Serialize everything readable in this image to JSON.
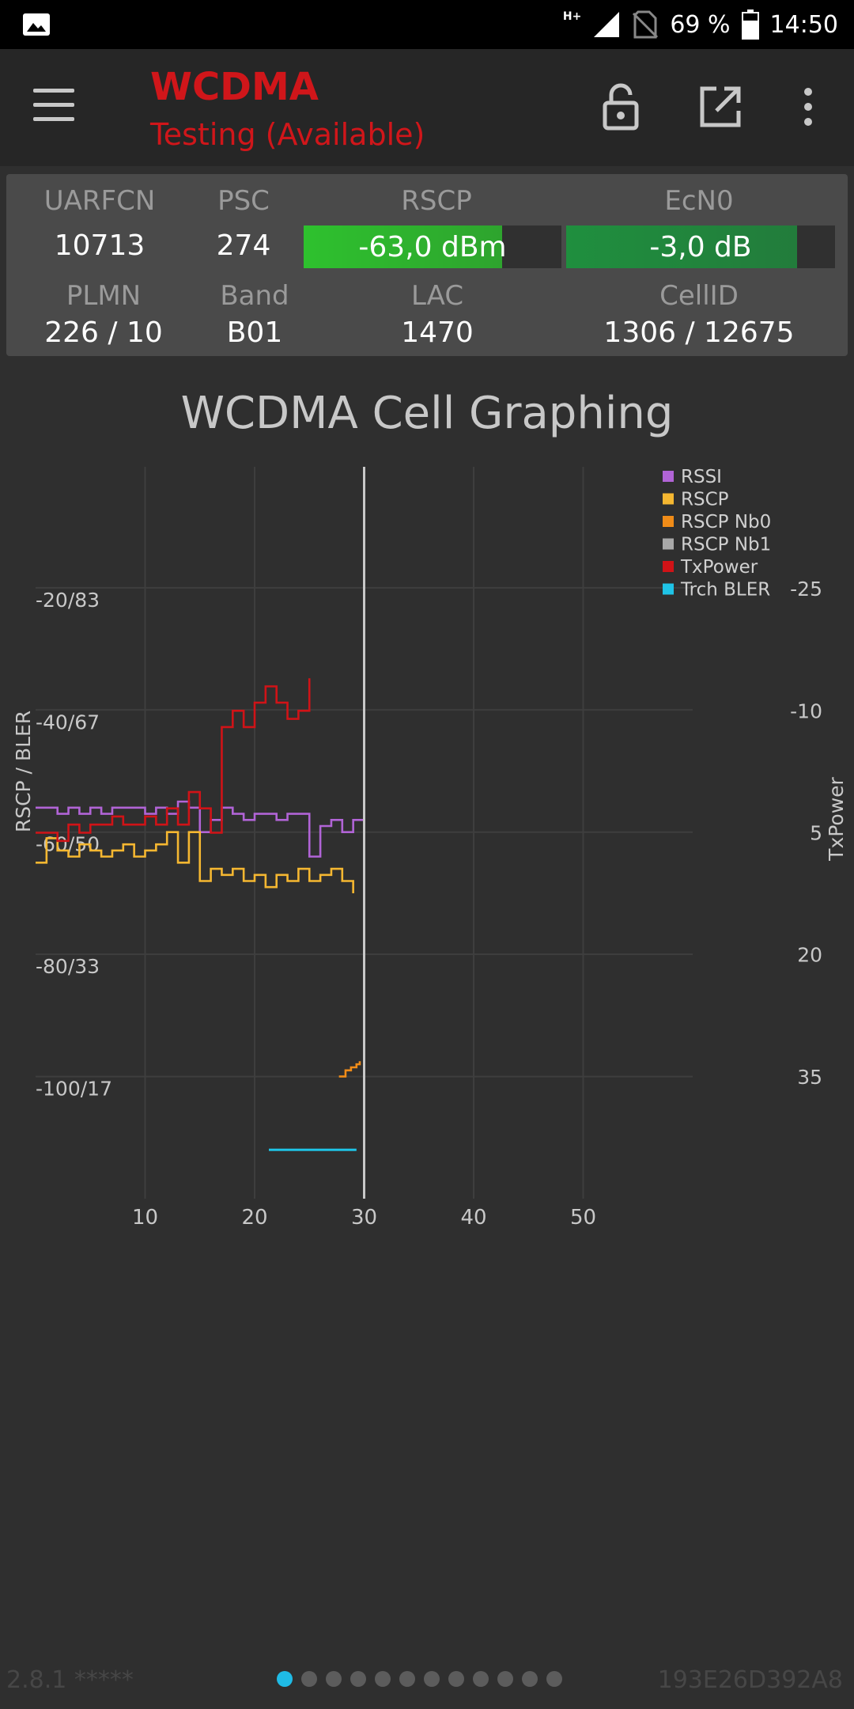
{
  "status_bar": {
    "network_type": "H+",
    "battery": "69 %",
    "time": "14:50"
  },
  "toolbar": {
    "title": "WCDMA",
    "subtitle": "Testing (Available)",
    "menu_icon": "hamburger-menu-icon",
    "lock_icon": "lock-open-icon",
    "external_icon": "open-external-icon",
    "more_icon": "more-vertical-icon"
  },
  "info": {
    "uarfcn": {
      "label": "UARFCN",
      "value": "10713"
    },
    "psc": {
      "label": "PSC",
      "value": "274"
    },
    "rscp": {
      "label": "RSCP",
      "value": "-63,0 dBm",
      "fill": 0.77,
      "color": "#2ec12e"
    },
    "ecn0": {
      "label": "EcN0",
      "value": "-3,0 dB",
      "fill": 0.86,
      "color": "#1f8f3e"
    },
    "plmn": {
      "label": "PLMN",
      "value": "226 / 10"
    },
    "band": {
      "label": "Band",
      "value": "B01"
    },
    "lac": {
      "label": "LAC",
      "value": "1470"
    },
    "cellid": {
      "label": "CellID",
      "value": "1306 / 12675"
    }
  },
  "chart_title": "WCDMA Cell Graphing",
  "chart_data": {
    "type": "line",
    "title": "WCDMA Cell Graphing",
    "xlabel": "",
    "ylabel": "RSCP / BLER",
    "y2label": "TxPower",
    "x_ticks": [
      "10",
      "20",
      "30",
      "40",
      "50"
    ],
    "xlim": [
      0,
      60
    ],
    "y_left_ticks": [
      "-20/83",
      "-40/67",
      "-60/50",
      "-80/33",
      "-100/17"
    ],
    "y_left_values": [
      -20,
      -40,
      -60,
      -80,
      -100
    ],
    "ylim": [
      -120,
      -0.2
    ],
    "y_right_ticks": [
      "-25",
      "-10",
      "5",
      "20",
      "35"
    ],
    "y_right_values": [
      -25,
      -10,
      5,
      20,
      35
    ],
    "y2lim": [
      -40,
      50
    ],
    "cursor_x": 30,
    "grid": true,
    "legend_position": "top-right",
    "series": [
      {
        "name": "RSSI",
        "color": "#b164d6",
        "axis": "left",
        "x": [
          0,
          2,
          3,
          4,
          5,
          6,
          7,
          8,
          9,
          10,
          11,
          12,
          13,
          14,
          15,
          16,
          17,
          18,
          19,
          20,
          21,
          22,
          23,
          24,
          25,
          26,
          27,
          28,
          29,
          30
        ],
        "y": [
          -56,
          -57,
          -56,
          -57,
          -56,
          -57,
          -56,
          -56,
          -56,
          -57,
          -56,
          -57,
          -55,
          -56,
          -60,
          -58,
          -56,
          -57,
          -58,
          -57,
          -57,
          -58,
          -57,
          -57,
          -64,
          -59,
          -58,
          -60,
          -58,
          -58
        ]
      },
      {
        "name": "RSCP",
        "color": "#f5b731",
        "axis": "left",
        "x": [
          0,
          1,
          2,
          3,
          4,
          5,
          6,
          7,
          8,
          9,
          10,
          11,
          12,
          13,
          14,
          15,
          16,
          17,
          18,
          19,
          20,
          21,
          22,
          23,
          24,
          25,
          26,
          27,
          28,
          29
        ],
        "y": [
          -65,
          -61,
          -63,
          -64,
          -62,
          -63,
          -64,
          -63,
          -62,
          -64,
          -63,
          -62,
          -60,
          -65,
          -60,
          -68,
          -66,
          -67,
          -66,
          -68,
          -67,
          -69,
          -67,
          -68,
          -66,
          -68,
          -67,
          -66,
          -68,
          -70
        ]
      },
      {
        "name": "RSCP Nb0",
        "color": "#f08c18",
        "axis": "left",
        "x": [
          27.7,
          28.3,
          28.8,
          29.3,
          29.6
        ],
        "y": [
          -100,
          -99,
          -98.5,
          -98,
          -97.5
        ]
      },
      {
        "name": "RSCP Nb1",
        "color": "#a8a8a8",
        "axis": "left",
        "x": [],
        "y": []
      },
      {
        "name": "TxPower",
        "color": "#d01317",
        "axis": "right",
        "x": [
          0,
          2,
          3,
          4,
          5,
          6,
          7,
          8,
          9,
          10,
          11,
          12,
          13,
          14,
          15,
          16,
          17,
          18,
          19,
          20,
          21,
          22,
          23,
          24,
          25
        ],
        "y": [
          5,
          6,
          4,
          5,
          4,
          4,
          3,
          4,
          4,
          3,
          4,
          2,
          4,
          0,
          2,
          5,
          -8,
          -10,
          -8,
          -11,
          -13,
          -11,
          -9,
          -10,
          -14
        ]
      },
      {
        "name": "Trch BLER",
        "color": "#1fc3e6",
        "axis": "left",
        "x": [
          21.3,
          29.3
        ],
        "y": [
          -112,
          -112
        ]
      }
    ]
  },
  "footer": {
    "version": "2.8.1 *****",
    "device_id": "193E26D392A8",
    "pages": 12,
    "active_page": 0
  }
}
